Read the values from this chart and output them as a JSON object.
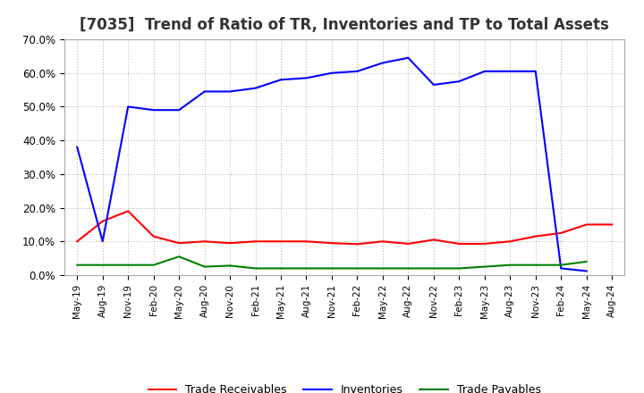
{
  "title": "[7035]  Trend of Ratio of TR, Inventories and TP to Total Assets",
  "x_labels": [
    "May-19",
    "Aug-19",
    "Nov-19",
    "Feb-20",
    "May-20",
    "Aug-20",
    "Nov-20",
    "Feb-21",
    "May-21",
    "Aug-21",
    "Nov-21",
    "Feb-22",
    "May-22",
    "Aug-22",
    "Nov-22",
    "Feb-23",
    "May-23",
    "Aug-23",
    "Nov-23",
    "Feb-24",
    "May-24",
    "Aug-24"
  ],
  "trade_receivables": [
    0.1,
    0.16,
    0.19,
    0.115,
    0.095,
    0.1,
    0.095,
    0.1,
    0.1,
    0.1,
    0.095,
    0.092,
    0.1,
    0.093,
    0.105,
    0.093,
    0.093,
    0.1,
    0.115,
    0.125,
    0.15,
    0.15
  ],
  "inventories": [
    0.38,
    0.1,
    0.5,
    0.49,
    0.49,
    0.545,
    0.545,
    0.555,
    0.58,
    0.585,
    0.6,
    0.605,
    0.63,
    0.645,
    0.565,
    0.575,
    0.605,
    0.605,
    0.605,
    0.02,
    0.012,
    null
  ],
  "trade_payables": [
    0.03,
    0.03,
    0.03,
    0.03,
    0.055,
    0.025,
    0.028,
    0.02,
    0.02,
    0.02,
    0.02,
    0.02,
    0.02,
    0.02,
    0.02,
    0.02,
    0.025,
    0.03,
    0.03,
    0.03,
    0.04,
    null
  ],
  "tr_color": "#FF0000",
  "inv_color": "#0000FF",
  "tp_color": "#008000",
  "ylim": [
    0.0,
    0.7
  ],
  "yticks": [
    0.0,
    0.1,
    0.2,
    0.3,
    0.4,
    0.5,
    0.6,
    0.7
  ],
  "background_color": "#FFFFFF",
  "grid_color": "#BBBBBB",
  "title_fontsize": 12,
  "legend_labels": [
    "Trade Receivables",
    "Inventories",
    "Trade Payables"
  ]
}
